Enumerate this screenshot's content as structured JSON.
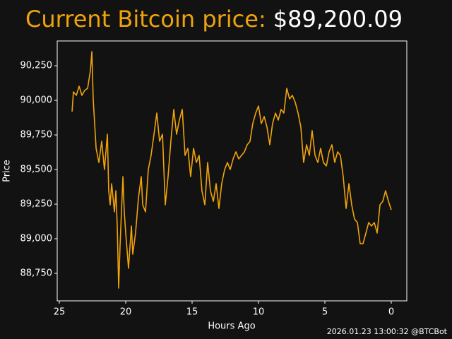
{
  "chart_data": {
    "type": "line",
    "title": "Current Bitcoin price:",
    "title_value": "$89,200.09",
    "xlabel": "Hours Ago",
    "ylabel": "Price",
    "footer": "2026.01.23 13:00:32 @BTCBot",
    "color": "#f0a30a",
    "xlim": [
      25.16,
      -1.17
    ],
    "xticks": [
      25,
      20,
      15,
      10,
      5,
      0
    ],
    "ylim": [
      88551,
      90429
    ],
    "yticks": [
      {
        "value": 88750,
        "label": "88,750"
      },
      {
        "value": 89000,
        "label": "89,000"
      },
      {
        "value": 89250,
        "label": "89,250"
      },
      {
        "value": 89500,
        "label": "89,500"
      },
      {
        "value": 89750,
        "label": "89,750"
      },
      {
        "value": 90000,
        "label": "90,000"
      },
      {
        "value": 90250,
        "label": "90,250"
      }
    ],
    "grid": false,
    "x": [
      24.04,
      23.94,
      23.72,
      23.51,
      23.3,
      23.09,
      22.87,
      22.66,
      22.55,
      22.45,
      22.23,
      22.02,
      21.81,
      21.6,
      21.38,
      21.28,
      21.17,
      21.06,
      20.85,
      20.74,
      20.64,
      20.53,
      20.43,
      20.21,
      20.11,
      20.0,
      19.79,
      19.57,
      19.47,
      19.26,
      19.04,
      18.83,
      18.72,
      18.51,
      18.3,
      18.09,
      17.87,
      17.66,
      17.45,
      17.23,
      17.02,
      16.81,
      16.6,
      16.38,
      16.17,
      15.96,
      15.74,
      15.53,
      15.32,
      15.11,
      14.89,
      14.68,
      14.47,
      14.26,
      14.04,
      13.83,
      13.62,
      13.4,
      13.19,
      12.98,
      12.77,
      12.55,
      12.34,
      12.13,
      11.91,
      11.7,
      11.49,
      11.28,
      11.06,
      10.85,
      10.64,
      10.43,
      10.21,
      10.0,
      9.79,
      9.57,
      9.36,
      9.15,
      8.94,
      8.72,
      8.51,
      8.3,
      8.09,
      7.87,
      7.66,
      7.45,
      7.23,
      7.02,
      6.81,
      6.6,
      6.38,
      6.17,
      5.96,
      5.74,
      5.53,
      5.32,
      5.11,
      4.89,
      4.68,
      4.47,
      4.26,
      4.04,
      3.83,
      3.62,
      3.4,
      3.19,
      2.98,
      2.77,
      2.55,
      2.34,
      2.13,
      1.91,
      1.7,
      1.49,
      1.28,
      1.06,
      0.85,
      0.64,
      0.43,
      0.21,
      0.0
    ],
    "values": [
      89918,
      90061,
      90036,
      90102,
      90036,
      90071,
      90087,
      90214,
      90352,
      90010,
      89653,
      89551,
      89704,
      89500,
      89755,
      89347,
      89245,
      89398,
      89194,
      89347,
      89092,
      88643,
      88939,
      89449,
      89194,
      89041,
      88786,
      89092,
      88888,
      89041,
      89296,
      89449,
      89245,
      89194,
      89500,
      89602,
      89755,
      89908,
      89704,
      89755,
      89245,
      89449,
      89704,
      89934,
      89755,
      89857,
      89934,
      89602,
      89653,
      89449,
      89653,
      89551,
      89602,
      89347,
      89245,
      89551,
      89347,
      89270,
      89398,
      89219,
      89398,
      89500,
      89551,
      89500,
      89577,
      89628,
      89577,
      89602,
      89628,
      89679,
      89704,
      89832,
      89908,
      89959,
      89832,
      89883,
      89806,
      89679,
      89832,
      89908,
      89857,
      89934,
      89908,
      90087,
      90010,
      90036,
      89985,
      89908,
      89806,
      89551,
      89679,
      89602,
      89781,
      89602,
      89551,
      89653,
      89551,
      89526,
      89628,
      89679,
      89551,
      89628,
      89602,
      89449,
      89219,
      89398,
      89245,
      89143,
      89117,
      88964,
      88964,
      89041,
      89117,
      89092,
      89117,
      89041,
      89245,
      89270,
      89347,
      89270,
      89209
    ]
  }
}
